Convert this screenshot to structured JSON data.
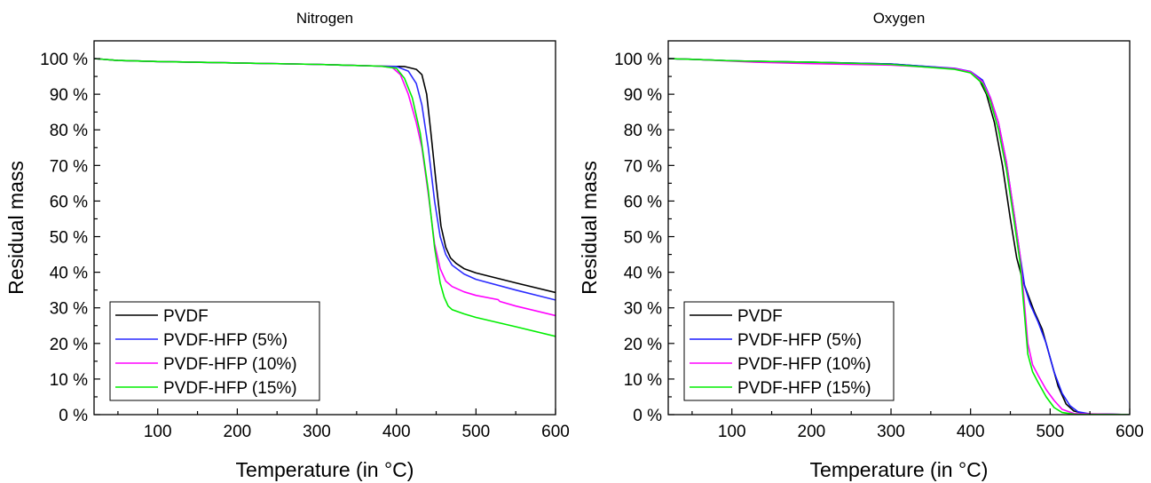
{
  "chart_data": [
    {
      "type": "line",
      "title": "Nitrogen",
      "xlabel": "Temperature (in °C)",
      "ylabel": "Residual mass",
      "xlim": [
        20,
        600
      ],
      "ylim": [
        0,
        105
      ],
      "xticks": [
        100,
        200,
        300,
        400,
        500,
        600
      ],
      "yticks": [
        0,
        10,
        20,
        30,
        40,
        50,
        60,
        70,
        80,
        90,
        100
      ],
      "ytick_suffix": " %",
      "grid": false,
      "legend_position": "bottom-left",
      "series": [
        {
          "name": "PVDF",
          "color": "#000000",
          "x": [
            20,
            50,
            100,
            200,
            300,
            380,
            410,
            425,
            432,
            438,
            443,
            450,
            456,
            462,
            468,
            475,
            485,
            500,
            550,
            600
          ],
          "y": [
            100,
            99.5,
            99.2,
            98.8,
            98.4,
            97.9,
            97.8,
            97.0,
            95.5,
            90,
            80,
            65,
            53,
            47,
            44,
            42.5,
            41,
            39.8,
            37,
            34.3
          ]
        },
        {
          "name": "PVDF-HFP (5%)",
          "color": "#2b2bff",
          "x": [
            20,
            50,
            100,
            200,
            300,
            380,
            400,
            415,
            425,
            432,
            440,
            448,
            455,
            462,
            470,
            485,
            500,
            550,
            600
          ],
          "y": [
            100,
            99.5,
            99.2,
            98.8,
            98.4,
            97.9,
            97.8,
            96.5,
            93,
            87,
            75,
            60,
            50,
            45,
            42,
            39.5,
            38,
            35,
            32.2
          ]
        },
        {
          "name": "PVDF-HFP (10%)",
          "color": "#ff00ff",
          "x": [
            20,
            50,
            100,
            200,
            300,
            380,
            395,
            405,
            415,
            425,
            432,
            440,
            448,
            455,
            462,
            470,
            485,
            500,
            528,
            530,
            550,
            600
          ],
          "y": [
            100,
            99.5,
            99.2,
            98.8,
            98.4,
            97.9,
            97.5,
            95.5,
            90,
            82,
            75,
            62,
            48,
            41,
            37.5,
            36,
            34.5,
            33.5,
            32.3,
            31.8,
            30.5,
            27.8
          ]
        },
        {
          "name": "PVDF-HFP (15%)",
          "color": "#00ee00",
          "x": [
            20,
            50,
            100,
            200,
            300,
            380,
            400,
            410,
            420,
            430,
            440,
            448,
            455,
            460,
            465,
            470,
            485,
            500,
            550,
            600
          ],
          "y": [
            100,
            99.5,
            99.2,
            98.8,
            98.4,
            97.9,
            97.3,
            94.5,
            89,
            79,
            63,
            47,
            37,
            33,
            30.5,
            29.5,
            28.3,
            27.3,
            24.7,
            22
          ]
        }
      ]
    },
    {
      "type": "line",
      "title": "Oxygen",
      "xlabel": "Temperature (in °C)",
      "ylabel": "Residual mass",
      "xlim": [
        20,
        600
      ],
      "ylim": [
        0,
        105
      ],
      "xticks": [
        100,
        200,
        300,
        400,
        500,
        600
      ],
      "yticks": [
        0,
        10,
        20,
        30,
        40,
        50,
        60,
        70,
        80,
        90,
        100
      ],
      "ytick_suffix": " %",
      "grid": false,
      "legend_position": "bottom-left",
      "series": [
        {
          "name": "PVDF",
          "color": "#000000",
          "x": [
            20,
            50,
            100,
            200,
            300,
            380,
            400,
            410,
            420,
            430,
            440,
            450,
            458,
            465,
            470,
            480,
            490,
            500,
            510,
            520,
            530,
            545,
            600
          ],
          "y": [
            100,
            99.8,
            99.4,
            99,
            98.5,
            97.2,
            96.2,
            94.5,
            90,
            82,
            70,
            55,
            44,
            38,
            35,
            29,
            24,
            16,
            8,
            3,
            1,
            0.2,
            0
          ]
        },
        {
          "name": "PVDF-HFP (5%)",
          "color": "#1c1cff",
          "x": [
            20,
            50,
            100,
            200,
            300,
            380,
            400,
            415,
            425,
            435,
            445,
            455,
            462,
            468,
            475,
            485,
            495,
            505,
            515,
            525,
            535,
            550,
            600
          ],
          "y": [
            100,
            99.8,
            99.4,
            99,
            98.5,
            97.3,
            96.4,
            94,
            89,
            82,
            71,
            56,
            45,
            36,
            31,
            26,
            20,
            12,
            6,
            2.5,
            0.8,
            0.2,
            0
          ]
        },
        {
          "name": "PVDF-HFP (10%)",
          "color": "#ff00ff",
          "x": [
            20,
            50,
            130,
            200,
            300,
            380,
            400,
            415,
            425,
            435,
            445,
            455,
            462,
            467,
            472,
            478,
            485,
            495,
            505,
            515,
            530,
            600
          ],
          "y": [
            100,
            99.8,
            99,
            98.6,
            98.2,
            97.2,
            96.3,
            93.5,
            89,
            82,
            71,
            56,
            45,
            33,
            20,
            14,
            11,
            7,
            4,
            1.5,
            0.3,
            0
          ]
        },
        {
          "name": "PVDF-HFP (15%)",
          "color": "#00ee00",
          "x": [
            20,
            50,
            100,
            200,
            300,
            380,
            400,
            415,
            425,
            435,
            445,
            455,
            462,
            467,
            472,
            478,
            485,
            495,
            505,
            515,
            530,
            600
          ],
          "y": [
            100,
            99.8,
            99.4,
            99,
            98.4,
            97,
            96,
            93,
            88,
            80,
            69,
            54,
            43,
            30,
            17,
            12,
            9,
            5,
            2,
            0.6,
            0.1,
            0
          ]
        }
      ]
    }
  ]
}
